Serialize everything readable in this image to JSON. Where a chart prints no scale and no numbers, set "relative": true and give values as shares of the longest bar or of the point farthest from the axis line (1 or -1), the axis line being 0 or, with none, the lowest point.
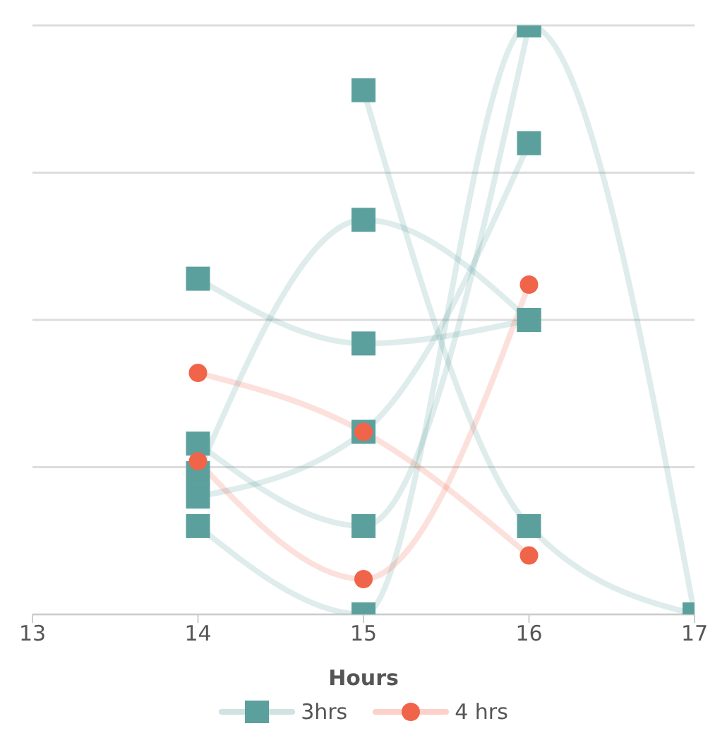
{
  "chart_data": {
    "type": "line",
    "xlabel": "Hours",
    "relative": true,
    "grid": "y",
    "legend": "bottom",
    "xlim": [
      13,
      17
    ],
    "xticks": [
      13,
      14,
      15,
      16,
      17
    ],
    "series": [
      {
        "name": "3hrs",
        "color": "#5ba09d",
        "marker": "square",
        "x": [
          14,
          15,
          16
        ],
        "values": [
          0.57,
          0.46,
          0.5
        ]
      },
      {
        "color": "#5ba09d",
        "marker": "square",
        "x": [
          14,
          15,
          16
        ],
        "values": [
          0.29,
          0.15,
          1.0
        ]
      },
      {
        "color": "#5ba09d",
        "marker": "square",
        "x": [
          14,
          15,
          16
        ],
        "values": [
          0.24,
          0.67,
          0.5
        ]
      },
      {
        "color": "#5ba09d",
        "marker": "square",
        "x": [
          15,
          16,
          17
        ],
        "values": [
          0.89,
          0.15,
          0
        ]
      },
      {
        "color": "#5ba09d",
        "marker": "square",
        "x": [
          14,
          15,
          16,
          17
        ],
        "values": [
          0.15,
          0,
          1.0,
          0
        ]
      },
      {
        "color": "#5ba09d",
        "marker": "square",
        "x": [
          14,
          15,
          16
        ],
        "values": [
          0.2,
          0.31,
          0.8
        ]
      },
      {
        "name": "4 hrs",
        "color": "#f0644a",
        "marker": "circle",
        "x": [
          14,
          15,
          16
        ],
        "values": [
          0.41,
          0.31,
          0.1
        ]
      },
      {
        "color": "#f0644a",
        "marker": "circle",
        "x": [
          14,
          15,
          16
        ],
        "values": [
          0.26,
          0.06,
          0.56
        ]
      }
    ]
  }
}
